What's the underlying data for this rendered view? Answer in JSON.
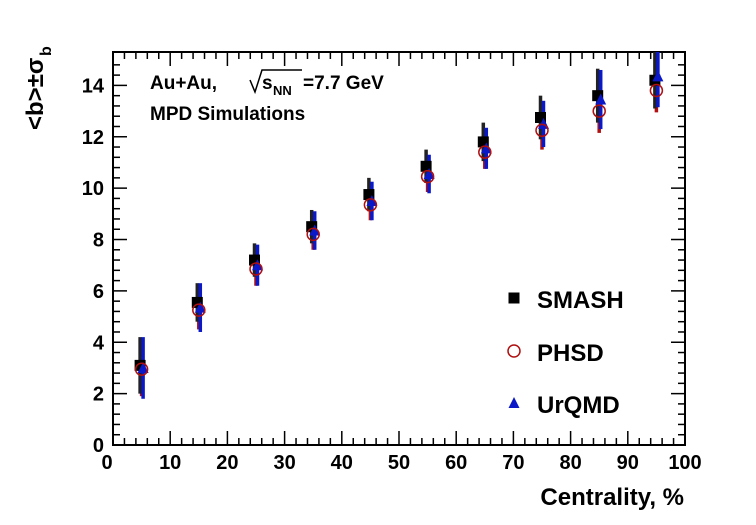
{
  "chart_data": {
    "type": "scatter",
    "title": "",
    "xlabel": "Centrality, %",
    "ylabel_main": "<b>±σ",
    "ylabel_sub": "b",
    "xlim": [
      0,
      100
    ],
    "ylim": [
      0,
      15.3
    ],
    "xticks": [
      0,
      10,
      20,
      30,
      40,
      50,
      60,
      70,
      80,
      90,
      100
    ],
    "yticks": [
      0,
      2,
      4,
      6,
      8,
      10,
      12,
      14
    ],
    "annotations": {
      "system": "Au+Au,",
      "energy_prefix": "s",
      "energy_sub": "NN",
      "energy_value": "=7.7 GeV",
      "simulation": "MPD Simulations"
    },
    "series": [
      {
        "name": "SMASH",
        "marker": "square",
        "color": "#000000",
        "error_color": "#222222",
        "x": [
          5,
          15,
          25,
          35,
          45,
          55,
          65,
          75,
          85,
          95
        ],
        "y": [
          3.1,
          5.55,
          7.2,
          8.5,
          9.75,
          10.85,
          11.8,
          12.75,
          13.6,
          14.2
        ],
        "yerr": [
          1.1,
          0.75,
          0.65,
          0.65,
          0.65,
          0.65,
          0.75,
          0.85,
          1.05,
          1.1
        ]
      },
      {
        "name": "PHSD",
        "marker": "open-circle",
        "color": "#b01010",
        "error_color": "#b01010",
        "x": [
          5,
          15,
          25,
          35,
          45,
          55,
          65,
          75,
          85,
          95
        ],
        "y": [
          2.95,
          5.25,
          6.85,
          8.2,
          9.35,
          10.45,
          11.4,
          12.25,
          13.0,
          13.8
        ],
        "yerr": [
          1.05,
          0.75,
          0.65,
          0.6,
          0.6,
          0.6,
          0.65,
          0.75,
          0.85,
          0.85
        ]
      },
      {
        "name": "UrQMD",
        "marker": "triangle",
        "color": "#0a18c8",
        "error_color": "#0a18c8",
        "x": [
          5,
          15,
          25,
          35,
          45,
          55,
          65,
          75,
          85,
          95
        ],
        "y": [
          3.0,
          5.35,
          7.0,
          8.35,
          9.5,
          10.55,
          11.55,
          12.5,
          13.45,
          14.35
        ],
        "yerr": [
          1.2,
          0.95,
          0.8,
          0.75,
          0.75,
          0.75,
          0.8,
          0.9,
          1.15,
          1.2
        ]
      }
    ],
    "legend": {
      "position": "bottom-right"
    }
  }
}
